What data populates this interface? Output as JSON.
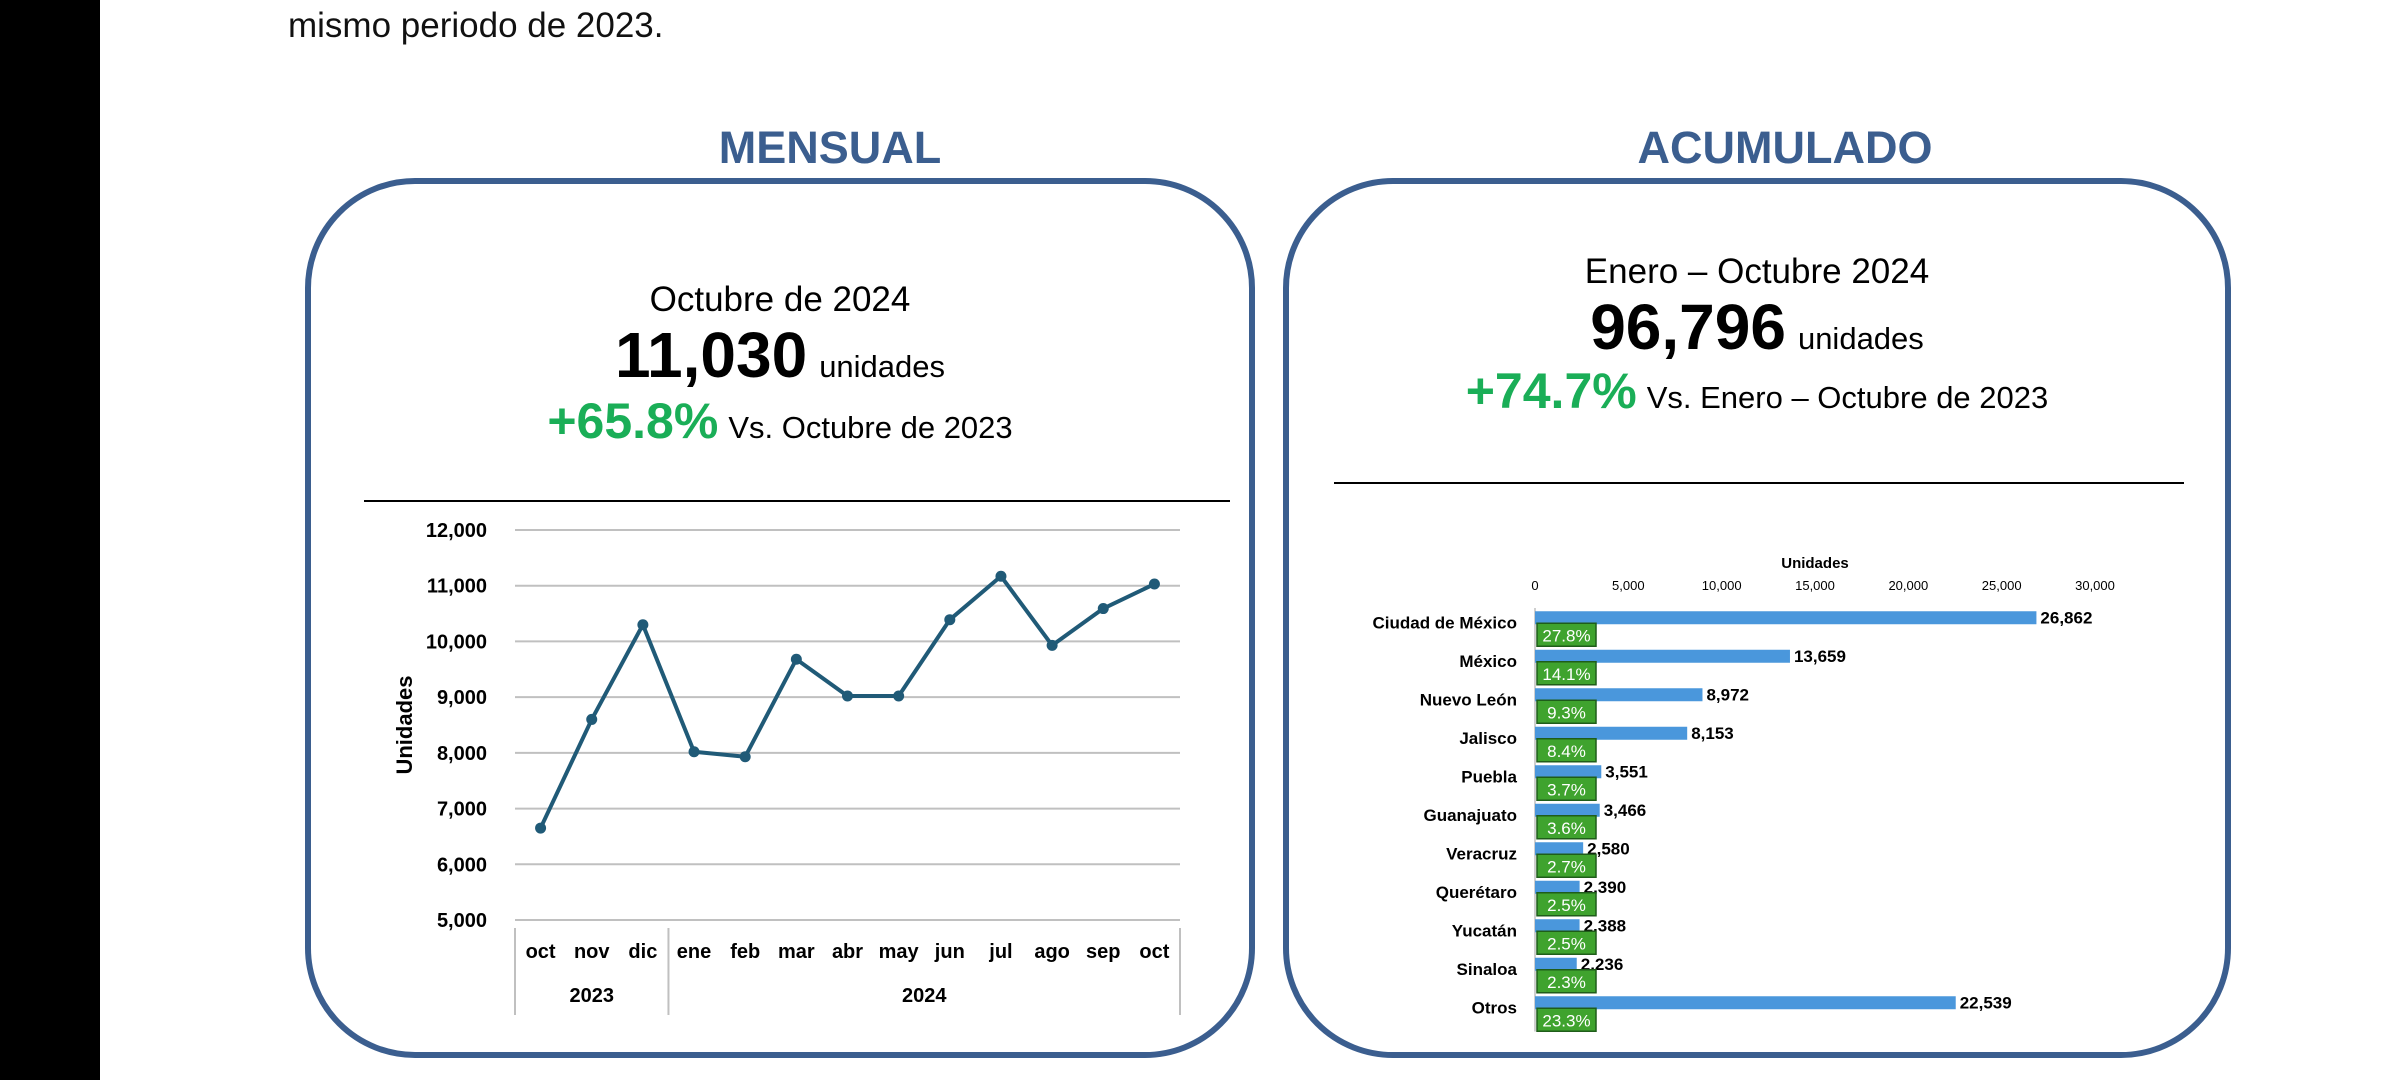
{
  "intro_text": "mismo periodo de 2023.",
  "monthly": {
    "title": "MENSUAL",
    "period": "Octubre de 2024",
    "value": "11,030",
    "unit": "unidades",
    "change": "+65.8%",
    "comparison": "Vs. Octubre de 2023"
  },
  "cumulative": {
    "title": "ACUMULADO",
    "period": "Enero – Octubre 2024",
    "value": "96,796",
    "unit": "unidades",
    "change": "+74.7%",
    "comparison": "Vs. Enero – Octubre de 2023"
  },
  "colors": {
    "accent": "#3b5e8f",
    "positive": "#1aae57",
    "line": "#205a77",
    "bar": "#4a97dc",
    "badge": "#3fa32e",
    "grid": "#c0c0c0"
  },
  "chart_data": [
    {
      "type": "line",
      "title": "",
      "xlabel": "",
      "ylabel": "Unidades",
      "categories": [
        "oct",
        "nov",
        "dic",
        "ene",
        "feb",
        "mar",
        "abr",
        "may",
        "jun",
        "jul",
        "ago",
        "sep",
        "oct"
      ],
      "groups": [
        {
          "label": "2023",
          "count": 3
        },
        {
          "label": "2024",
          "count": 10
        }
      ],
      "values": [
        6650,
        8600,
        10300,
        8020,
        7930,
        9680,
        9020,
        9020,
        10390,
        11170,
        9930,
        10590,
        11030
      ],
      "ylim": [
        5000,
        12000
      ],
      "yticks": [
        5000,
        6000,
        7000,
        8000,
        9000,
        10000,
        11000,
        12000
      ],
      "ytick_labels": [
        "5,000",
        "6,000",
        "7,000",
        "8,000",
        "9,000",
        "10,000",
        "11,000",
        "12,000"
      ],
      "grid": true,
      "legend": "none"
    },
    {
      "type": "bar",
      "orientation": "horizontal",
      "title": "",
      "xlabel": "Unidades",
      "xlim": [
        0,
        30000
      ],
      "xticks": [
        0,
        5000,
        10000,
        15000,
        20000,
        25000,
        30000
      ],
      "xtick_labels": [
        "0",
        "5,000",
        "10,000",
        "15,000",
        "20,000",
        "25,000",
        "30,000"
      ],
      "xaxis_position": "top",
      "categories": [
        "Ciudad de México",
        "México",
        "Nuevo León",
        "Jalisco",
        "Puebla",
        "Guanajuato",
        "Veracruz",
        "Querétaro",
        "Yucatán",
        "Sinaloa",
        "Otros"
      ],
      "values": [
        26862,
        13659,
        8972,
        8153,
        3551,
        3466,
        2580,
        2390,
        2388,
        2236,
        22539
      ],
      "value_labels": [
        "26,862",
        "13,659",
        "8,972",
        "8,153",
        "3,551",
        "3,466",
        "2,580",
        "2,390",
        "2,388",
        "2,236",
        "22,539"
      ],
      "share_labels": [
        "27.8%",
        "14.1%",
        "9.3%",
        "8.4%",
        "3.7%",
        "3.6%",
        "2.7%",
        "2.5%",
        "2.5%",
        "2.3%",
        "23.3%"
      ],
      "grid": false,
      "legend": "none"
    }
  ]
}
